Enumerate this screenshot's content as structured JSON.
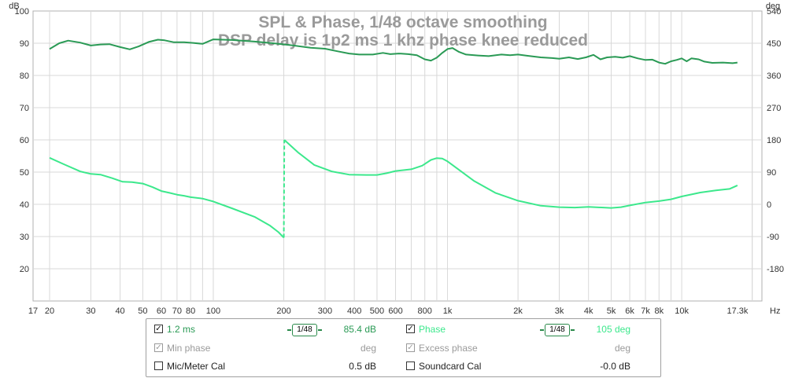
{
  "chart_data": {
    "type": "line",
    "title": "SPL & Phase, 1/48 octave smoothing",
    "subtitle": "DSP delay is 1p2 ms 1 khz phase knee reduced",
    "x_scale": "log",
    "xlim": [
      17,
      22000
    ],
    "x_ticks": [
      17,
      20,
      30,
      40,
      50,
      60,
      70,
      80,
      100,
      200,
      300,
      400,
      500,
      600,
      800,
      1000,
      2000,
      3000,
      4000,
      5000,
      6000,
      7000,
      8000,
      10000,
      17300
    ],
    "x_tick_labels": [
      "17",
      "20",
      "30",
      "40",
      "50",
      "60",
      "70",
      "80",
      "100",
      "200",
      "300",
      "400",
      "500",
      "600",
      "800",
      "1k",
      "2k",
      "3k",
      "4k",
      "5k",
      "6k",
      "7k",
      "8k",
      "10k",
      "17.3k"
    ],
    "xlabel": "Hz",
    "ylabel_left": "dB",
    "ylabel_right": "deg",
    "ylim_left": [
      10,
      100
    ],
    "ylim_right": [
      -270,
      540
    ],
    "y_ticks_left": [
      20,
      30,
      40,
      50,
      60,
      70,
      80,
      90,
      100
    ],
    "y_ticks_right": [
      -180,
      -90,
      0,
      90,
      180,
      270,
      360,
      450,
      540
    ],
    "grid": true,
    "series": [
      {
        "name": "1.2 ms",
        "axis": "left",
        "color": "#2a9a55",
        "points": [
          [
            20,
            88.2
          ],
          [
            22,
            90.0
          ],
          [
            24,
            90.8
          ],
          [
            27,
            90.2
          ],
          [
            30,
            89.3
          ],
          [
            33,
            89.6
          ],
          [
            36,
            89.7
          ],
          [
            40,
            88.8
          ],
          [
            44,
            88.1
          ],
          [
            48,
            89.0
          ],
          [
            53,
            90.4
          ],
          [
            58,
            91.1
          ],
          [
            62,
            90.9
          ],
          [
            68,
            90.3
          ],
          [
            75,
            90.3
          ],
          [
            82,
            90.1
          ],
          [
            90,
            89.8
          ],
          [
            100,
            91.2
          ],
          [
            120,
            91.0
          ],
          [
            150,
            90.5
          ],
          [
            180,
            90.0
          ],
          [
            220,
            89.3
          ],
          [
            260,
            88.6
          ],
          [
            300,
            88.3
          ],
          [
            340,
            87.5
          ],
          [
            380,
            86.8
          ],
          [
            420,
            86.5
          ],
          [
            480,
            86.5
          ],
          [
            530,
            87.0
          ],
          [
            570,
            86.6
          ],
          [
            620,
            86.8
          ],
          [
            680,
            86.6
          ],
          [
            740,
            86.3
          ],
          [
            800,
            85.0
          ],
          [
            850,
            84.6
          ],
          [
            900,
            85.5
          ],
          [
            950,
            87.0
          ],
          [
            1000,
            88.2
          ],
          [
            1050,
            88.5
          ],
          [
            1120,
            87.3
          ],
          [
            1200,
            86.5
          ],
          [
            1350,
            86.2
          ],
          [
            1500,
            86.0
          ],
          [
            1700,
            86.5
          ],
          [
            1850,
            86.3
          ],
          [
            2000,
            86.5
          ],
          [
            2200,
            86.1
          ],
          [
            2500,
            85.6
          ],
          [
            2800,
            85.4
          ],
          [
            3000,
            85.2
          ],
          [
            3300,
            85.6
          ],
          [
            3600,
            85.1
          ],
          [
            3900,
            85.6
          ],
          [
            4200,
            86.4
          ],
          [
            4500,
            85.0
          ],
          [
            4800,
            85.6
          ],
          [
            5200,
            85.8
          ],
          [
            5600,
            85.5
          ],
          [
            6000,
            86.0
          ],
          [
            6500,
            85.3
          ],
          [
            7000,
            84.8
          ],
          [
            7500,
            84.9
          ],
          [
            8000,
            84.0
          ],
          [
            8500,
            83.6
          ],
          [
            9000,
            84.4
          ],
          [
            9500,
            84.8
          ],
          [
            10000,
            85.3
          ],
          [
            10500,
            84.4
          ],
          [
            11000,
            85.3
          ],
          [
            11800,
            85.0
          ],
          [
            12500,
            84.3
          ],
          [
            13500,
            83.9
          ],
          [
            15000,
            84.0
          ],
          [
            16500,
            83.8
          ],
          [
            17300,
            84.0
          ]
        ]
      },
      {
        "name": "Phase",
        "axis": "right",
        "color": "#3ce88c",
        "points": [
          [
            20,
            130
          ],
          [
            23,
            112
          ],
          [
            27,
            92
          ],
          [
            30,
            85
          ],
          [
            33,
            83
          ],
          [
            37,
            73
          ],
          [
            41,
            63
          ],
          [
            45,
            62
          ],
          [
            50,
            58
          ],
          [
            55,
            48
          ],
          [
            60,
            37
          ],
          [
            65,
            32
          ],
          [
            70,
            27
          ],
          [
            75,
            24
          ],
          [
            80,
            20
          ],
          [
            90,
            16
          ],
          [
            100,
            8
          ],
          [
            120,
            -11
          ],
          [
            150,
            -35
          ],
          [
            175,
            -60
          ],
          [
            190,
            -78
          ],
          [
            200,
            -93
          ],
          [
            201,
            180
          ],
          [
            230,
            145
          ],
          [
            270,
            110
          ],
          [
            320,
            92
          ],
          [
            380,
            83
          ],
          [
            450,
            82
          ],
          [
            500,
            82
          ],
          [
            550,
            87
          ],
          [
            600,
            93
          ],
          [
            700,
            98
          ],
          [
            780,
            108
          ],
          [
            850,
            124
          ],
          [
            900,
            129
          ],
          [
            950,
            128
          ],
          [
            1000,
            120
          ],
          [
            1100,
            100
          ],
          [
            1300,
            65
          ],
          [
            1600,
            32
          ],
          [
            2000,
            10
          ],
          [
            2500,
            -4
          ],
          [
            3000,
            -8
          ],
          [
            3500,
            -9
          ],
          [
            4000,
            -7
          ],
          [
            5000,
            -10
          ],
          [
            5500,
            -8
          ],
          [
            6000,
            -3
          ],
          [
            7000,
            5
          ],
          [
            8000,
            9
          ],
          [
            9000,
            14
          ],
          [
            10000,
            22
          ],
          [
            12000,
            33
          ],
          [
            14000,
            39
          ],
          [
            16000,
            43
          ],
          [
            17300,
            53
          ]
        ]
      }
    ]
  },
  "legend": {
    "row1": {
      "spl_label": "1.2 ms",
      "spl_smoothing": "1/48",
      "spl_value": "85.4 dB",
      "phase_label": "Phase",
      "phase_smoothing": "1/48",
      "phase_value": "105 deg"
    },
    "row2": {
      "left_label": "Min phase",
      "left_value": "deg",
      "right_label": "Excess phase",
      "right_value": "deg"
    },
    "row3": {
      "left_label": "Mic/Meter Cal",
      "left_value": "0.5 dB",
      "right_label": "Soundcard Cal",
      "right_value": "-0.0 dB"
    }
  },
  "colors": {
    "grid": "#d8d8d8",
    "spl": "#2a9a55",
    "phase": "#3ce88c",
    "title": "#9a9a9a"
  }
}
